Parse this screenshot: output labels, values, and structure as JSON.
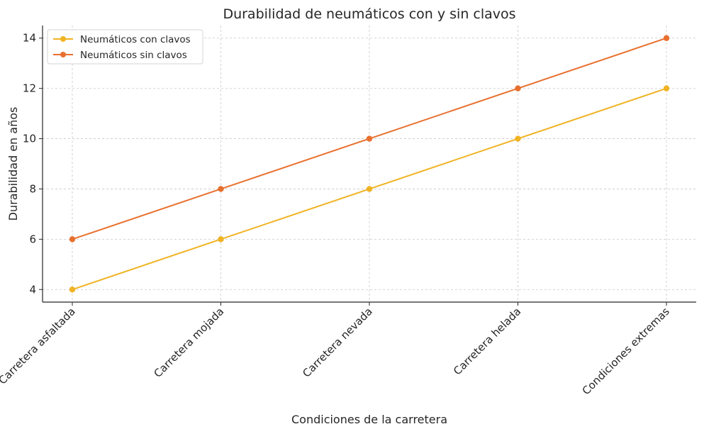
{
  "chart_data": {
    "type": "line",
    "title": "Durabilidad de neumáticos con y sin clavos",
    "xlabel": "Condiciones de la carretera",
    "ylabel": "Durabilidad en años",
    "categories": [
      "Carretera asfaltada",
      "Carretera mojada",
      "Carretera nevada",
      "Carretera helada",
      "Condiciones extremas"
    ],
    "series": [
      {
        "name": "Neumáticos con clavos",
        "values": [
          4,
          6,
          8,
          10,
          12
        ],
        "color": "#f0b323"
      },
      {
        "name": "Neumáticos sin clavos",
        "values": [
          6,
          8,
          10,
          12,
          14
        ],
        "color": "#e8702f"
      }
    ],
    "ylim": [
      3.5,
      14.5
    ],
    "yticks": [
      4,
      6,
      8,
      10,
      12,
      14
    ],
    "grid": true,
    "legend": "top-left"
  }
}
